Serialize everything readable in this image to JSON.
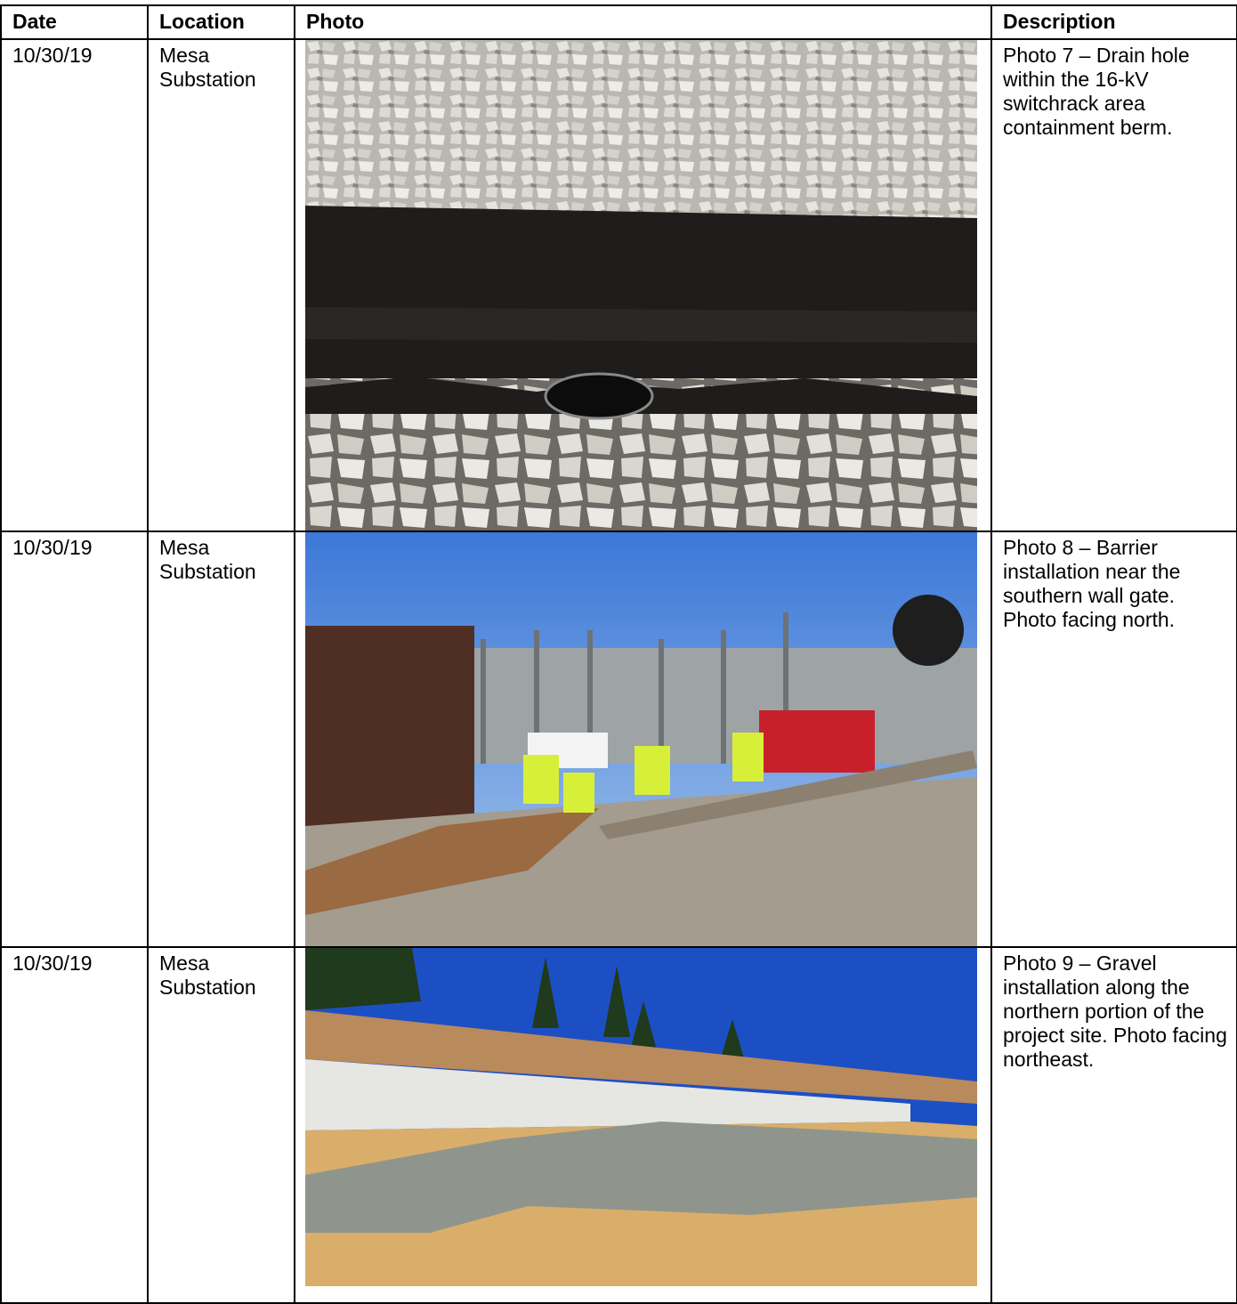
{
  "table": {
    "header": [
      "Date",
      "Location",
      "Photo",
      "Description"
    ],
    "rows": [
      {
        "date": "10/30/19",
        "location": "Mesa Substation",
        "description": "Photo 7 – Drain hole within the 16-kV switchrack area containment berm."
      },
      {
        "date": "10/30/19",
        "location": "Mesa Substation",
        "description": "Photo 8 – Barrier installation near the southern wall gate. Photo facing north."
      },
      {
        "date": "10/30/19",
        "location": "Mesa Substation",
        "description": "Photo 9 – Gravel installation along the northern portion of the project site. Photo facing northeast."
      }
    ]
  }
}
